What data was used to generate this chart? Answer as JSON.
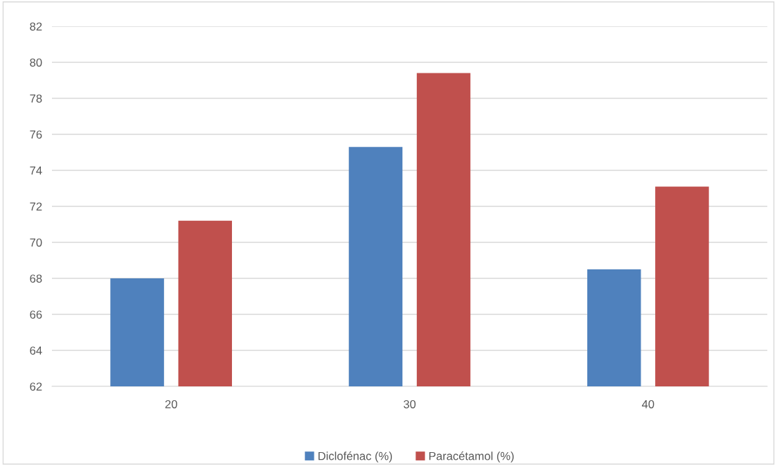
{
  "chart_data": {
    "type": "bar",
    "categories": [
      "20",
      "30",
      "40"
    ],
    "series": [
      {
        "name": "Diclofénac (%)",
        "color": "#4f81bd",
        "values": [
          68.0,
          75.3,
          68.5
        ]
      },
      {
        "name": "Paracétamol (%)",
        "color": "#c0504d",
        "values": [
          71.2,
          79.4,
          73.1
        ]
      }
    ],
    "ylim": [
      62,
      82
    ],
    "yticks": [
      62,
      64,
      66,
      68,
      70,
      72,
      74,
      76,
      78,
      80,
      82
    ],
    "grid": "y",
    "legend": "bottom"
  }
}
